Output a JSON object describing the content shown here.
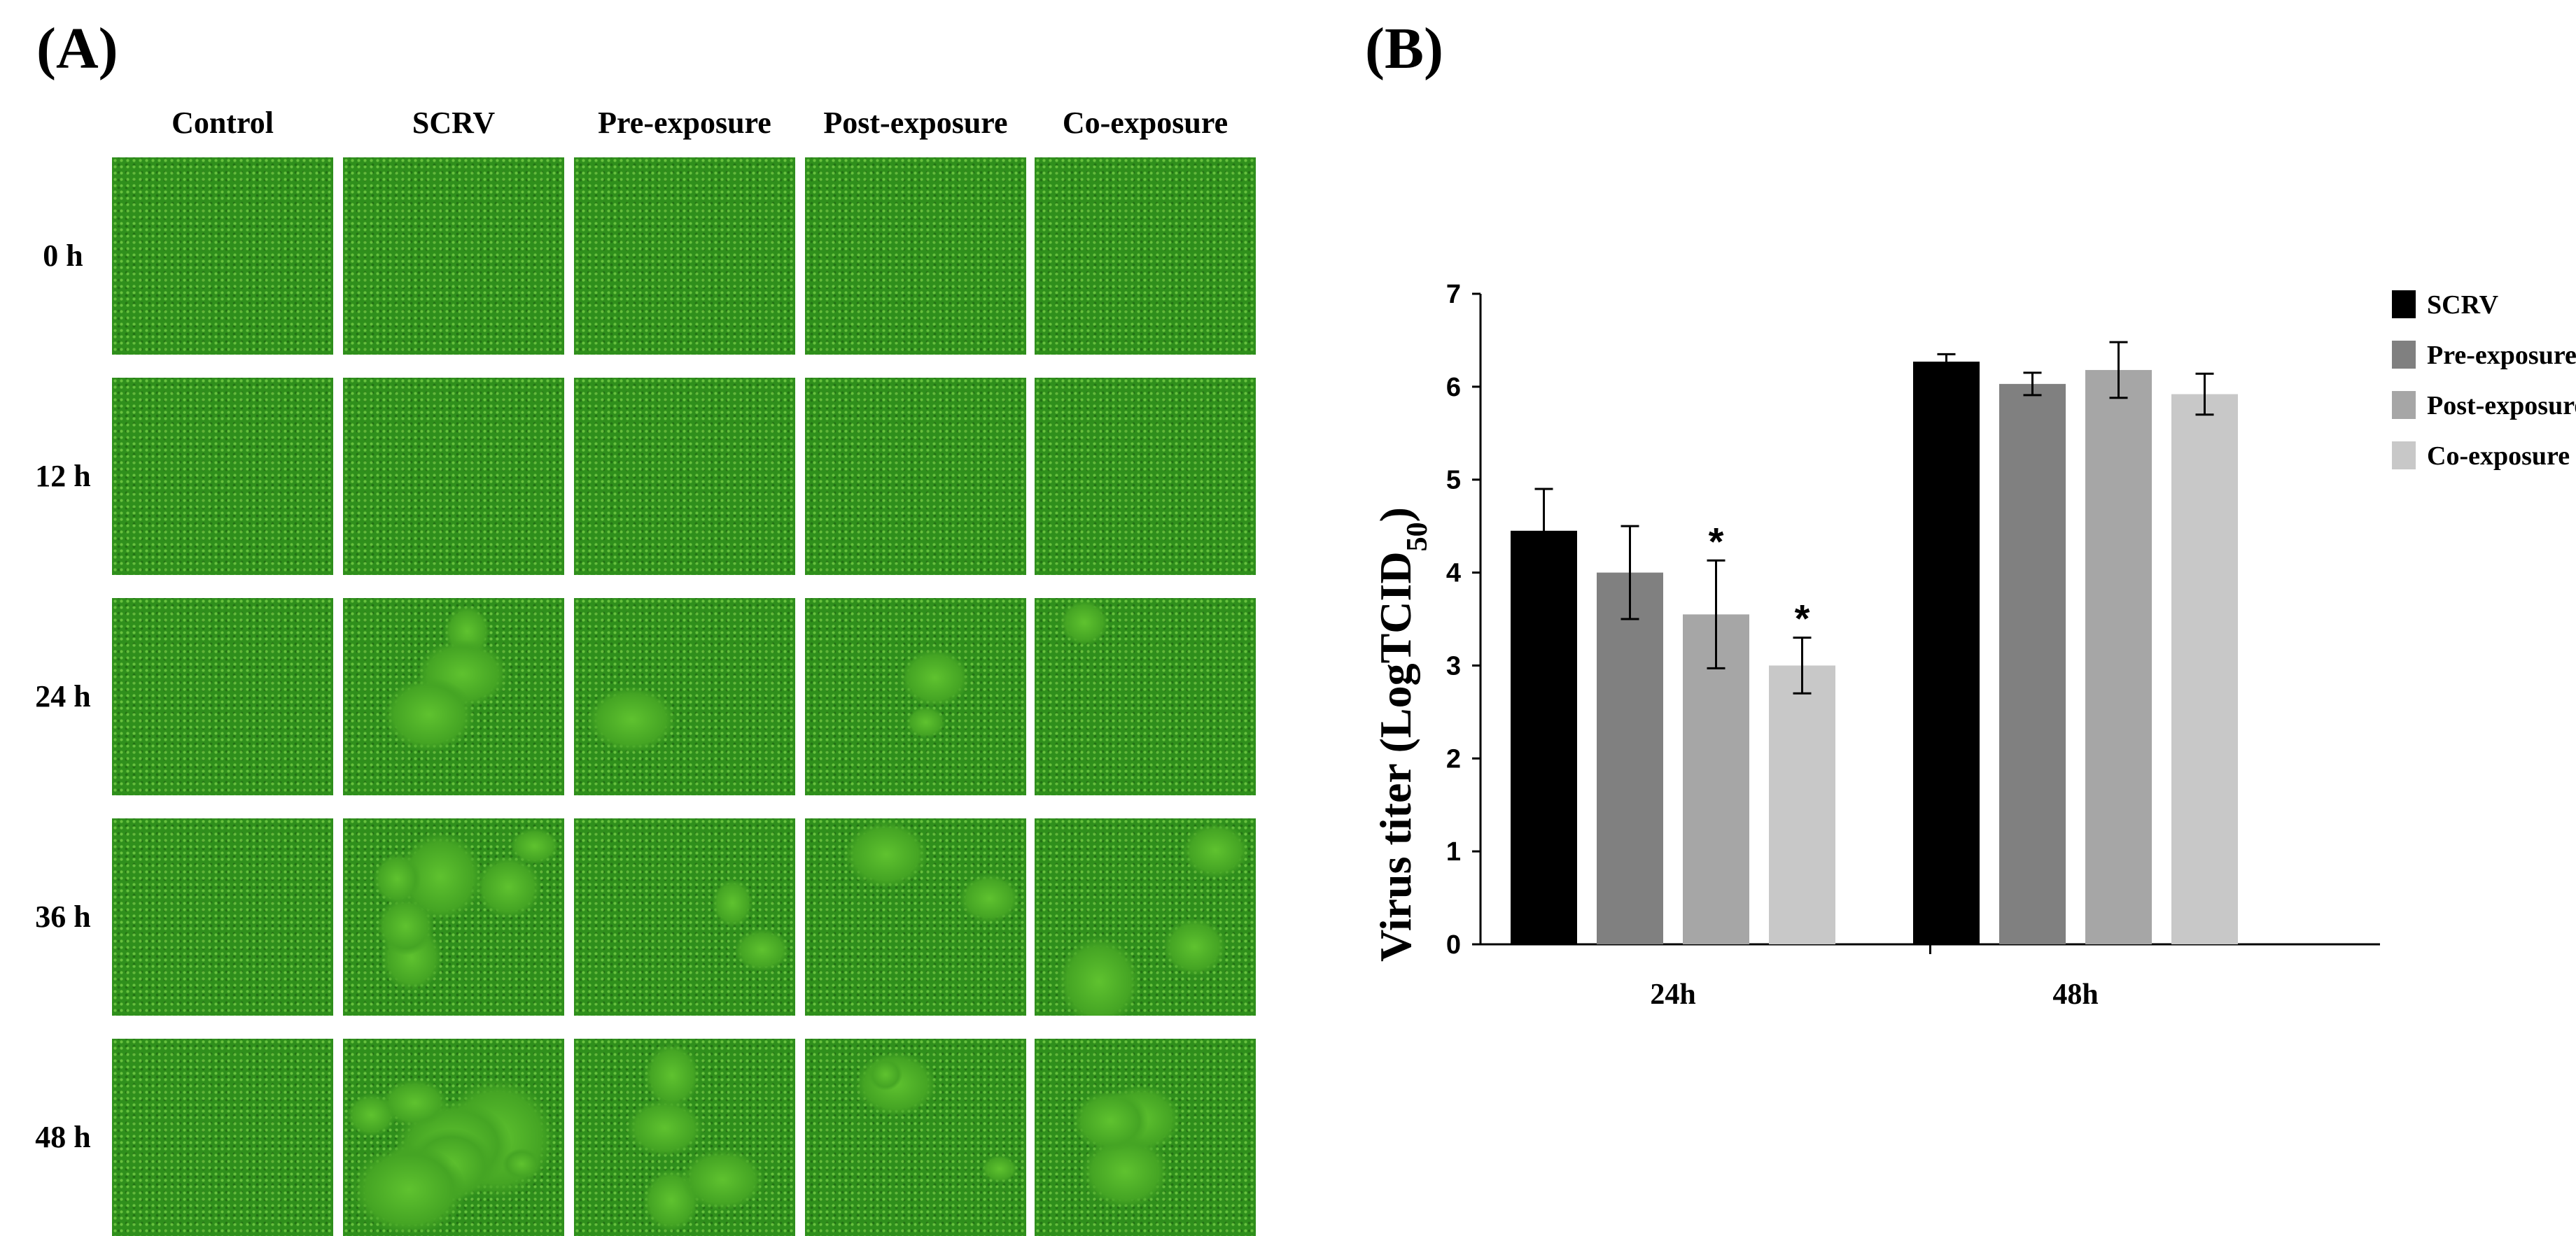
{
  "panel_a": {
    "label": "(A)",
    "columns": [
      "Control",
      "SCRV",
      "Pre-exposure",
      "Post-exposure",
      "Co-exposure"
    ],
    "rows": [
      "0 h",
      "12 h",
      "24 h",
      "36 h",
      "48 h"
    ]
  },
  "panel_b": {
    "label": "(B)"
  },
  "colors": {
    "SCRV": "#000000",
    "Pre-exposure": "#808080",
    "Post-exposure": "#a6a6a6",
    "Co-exposure": "#c8c8c8",
    "micro_green": "#2f8f1c"
  },
  "chart_data": {
    "type": "bar",
    "categories": [
      "24h",
      "48h"
    ],
    "series": [
      {
        "name": "SCRV",
        "values": [
          4.45,
          6.27
        ],
        "errors": [
          0.45,
          0.08
        ],
        "significant": [
          false,
          false
        ]
      },
      {
        "name": "Pre-exposure",
        "values": [
          4.0,
          6.03
        ],
        "errors": [
          0.5,
          0.12
        ],
        "significant": [
          false,
          false
        ]
      },
      {
        "name": "Post-exposure",
        "values": [
          3.55,
          6.18
        ],
        "errors": [
          0.58,
          0.3
        ],
        "significant": [
          true,
          false
        ]
      },
      {
        "name": "Co-exposure",
        "values": [
          3.0,
          5.92
        ],
        "errors": [
          0.3,
          0.22
        ],
        "significant": [
          true,
          false
        ]
      }
    ],
    "significance_marker": "*",
    "ylabel": "Virus titer (LogTCID",
    "ylabel_subscript": "50",
    "ylabel_suffix": ")",
    "ylim": [
      0,
      7
    ],
    "yticks": [
      "0",
      "1",
      "2",
      "3",
      "4",
      "5",
      "6",
      "7"
    ],
    "legend": [
      "SCRV",
      "Pre-exposure",
      "Post-exposure",
      "Co-exposure"
    ],
    "legend_position": "top-right",
    "grid": false
  }
}
